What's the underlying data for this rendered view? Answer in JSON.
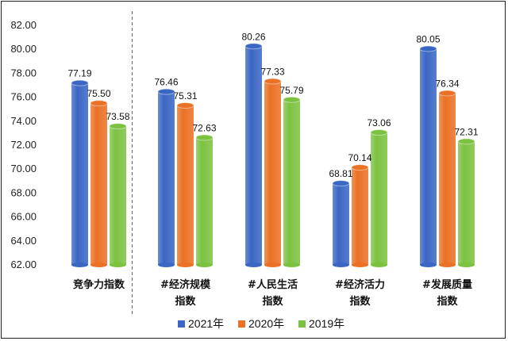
{
  "chart_data": {
    "type": "bar",
    "categories": [
      [
        "竞争力指数"
      ],
      [
        "#经济规模",
        "指数"
      ],
      [
        "#人民生活",
        "指数"
      ],
      [
        "#经济活力",
        "指数"
      ],
      [
        "#发展质量",
        "指数"
      ]
    ],
    "series": [
      {
        "name": "2021年",
        "color": "#3a66c4",
        "values": [
          77.19,
          76.46,
          80.26,
          68.81,
          80.05
        ]
      },
      {
        "name": "2020年",
        "color": "#ea7125",
        "values": [
          75.5,
          75.31,
          77.33,
          70.14,
          76.34
        ]
      },
      {
        "name": "2019年",
        "color": "#7cc241",
        "values": [
          73.58,
          72.63,
          75.79,
          73.06,
          72.31
        ]
      }
    ],
    "y_ticks": [
      "62.00",
      "64.00",
      "66.00",
      "68.00",
      "70.00",
      "72.00",
      "74.00",
      "76.00",
      "78.00",
      "80.00",
      "82.00"
    ],
    "ylim": [
      62,
      82
    ],
    "grid": false,
    "legend_position": "bottom",
    "divider_after_category": 0
  }
}
